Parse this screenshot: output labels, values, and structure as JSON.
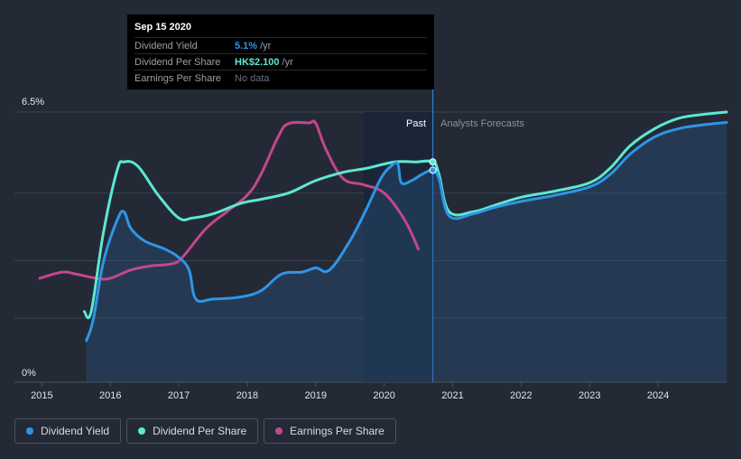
{
  "tooltip": {
    "date": "Sep 15 2020",
    "rows": [
      {
        "label": "Dividend Yield",
        "value": "5.1%",
        "unit": "/yr"
      },
      {
        "label": "Dividend Per Share",
        "value": "HK$2.100",
        "unit": "/yr"
      },
      {
        "label": "Earnings Per Share",
        "value": "No data",
        "unit": ""
      }
    ]
  },
  "labels": {
    "past": "Past",
    "forecast": "Analysts Forecasts"
  },
  "legend": [
    {
      "label": "Dividend Yield",
      "color": "#2f95e8"
    },
    {
      "label": "Dividend Per Share",
      "color": "#5de8d2"
    },
    {
      "label": "Earnings Per Share",
      "color": "#c4468c"
    }
  ],
  "chart_data": {
    "type": "line",
    "x_ticks": [
      "2015",
      "2016",
      "2017",
      "2018",
      "2019",
      "2020",
      "2021",
      "2022",
      "2023",
      "2024"
    ],
    "y_ticks": [
      "6.5%",
      "0%"
    ],
    "ylim": [
      0,
      6.5
    ],
    "xlim": [
      2014.6,
      2025.0
    ],
    "past_region": [
      2019.7,
      2020.71
    ],
    "forecast_start": 2020.71,
    "grid": true,
    "series": [
      {
        "name": "Dividend Yield",
        "color": "#2f95e8",
        "area": true,
        "points": [
          [
            2015.65,
            1.0
          ],
          [
            2015.75,
            1.5
          ],
          [
            2015.9,
            2.9
          ],
          [
            2016.1,
            3.9
          ],
          [
            2016.2,
            4.1
          ],
          [
            2016.3,
            3.7
          ],
          [
            2016.5,
            3.4
          ],
          [
            2016.8,
            3.2
          ],
          [
            2017.0,
            3.0
          ],
          [
            2017.15,
            2.7
          ],
          [
            2017.25,
            2.0
          ],
          [
            2017.5,
            2.0
          ],
          [
            2017.9,
            2.05
          ],
          [
            2018.2,
            2.2
          ],
          [
            2018.5,
            2.6
          ],
          [
            2018.8,
            2.65
          ],
          [
            2019.0,
            2.75
          ],
          [
            2019.2,
            2.7
          ],
          [
            2019.5,
            3.4
          ],
          [
            2019.75,
            4.2
          ],
          [
            2019.95,
            4.9
          ],
          [
            2020.1,
            5.2
          ],
          [
            2020.2,
            5.25
          ],
          [
            2020.25,
            4.8
          ],
          [
            2020.4,
            4.85
          ],
          [
            2020.55,
            5.0
          ],
          [
            2020.71,
            5.1
          ],
          [
            2020.8,
            4.9
          ],
          [
            2020.95,
            4.0
          ],
          [
            2021.3,
            4.05
          ],
          [
            2021.6,
            4.2
          ],
          [
            2022.0,
            4.35
          ],
          [
            2022.5,
            4.5
          ],
          [
            2023.0,
            4.7
          ],
          [
            2023.3,
            5.0
          ],
          [
            2023.6,
            5.5
          ],
          [
            2023.95,
            5.9
          ],
          [
            2024.3,
            6.1
          ],
          [
            2024.7,
            6.2
          ],
          [
            2025.0,
            6.25
          ]
        ]
      },
      {
        "name": "Dividend Per Share",
        "color": "#5de8d2",
        "area": false,
        "points": [
          [
            2015.62,
            1.7
          ],
          [
            2015.72,
            1.7
          ],
          [
            2015.9,
            3.6
          ],
          [
            2016.1,
            5.1
          ],
          [
            2016.2,
            5.3
          ],
          [
            2016.4,
            5.2
          ],
          [
            2016.7,
            4.5
          ],
          [
            2017.0,
            3.95
          ],
          [
            2017.2,
            3.95
          ],
          [
            2017.5,
            4.05
          ],
          [
            2017.9,
            4.3
          ],
          [
            2018.2,
            4.4
          ],
          [
            2018.6,
            4.55
          ],
          [
            2019.0,
            4.85
          ],
          [
            2019.4,
            5.05
          ],
          [
            2019.75,
            5.15
          ],
          [
            2020.15,
            5.3
          ],
          [
            2020.45,
            5.3
          ],
          [
            2020.71,
            5.3
          ],
          [
            2020.8,
            5.0
          ],
          [
            2020.95,
            4.1
          ],
          [
            2021.3,
            4.1
          ],
          [
            2021.6,
            4.25
          ],
          [
            2022.0,
            4.45
          ],
          [
            2022.5,
            4.6
          ],
          [
            2023.0,
            4.8
          ],
          [
            2023.3,
            5.15
          ],
          [
            2023.6,
            5.7
          ],
          [
            2023.95,
            6.1
          ],
          [
            2024.3,
            6.35
          ],
          [
            2024.7,
            6.45
          ],
          [
            2025.0,
            6.5
          ]
        ]
      },
      {
        "name": "Earnings Per Share",
        "color": "#c4468c",
        "area": false,
        "points": [
          [
            2014.97,
            2.5
          ],
          [
            2015.3,
            2.65
          ],
          [
            2015.5,
            2.6
          ],
          [
            2015.8,
            2.5
          ],
          [
            2016.0,
            2.5
          ],
          [
            2016.3,
            2.7
          ],
          [
            2016.6,
            2.8
          ],
          [
            2016.9,
            2.85
          ],
          [
            2017.05,
            3.0
          ],
          [
            2017.4,
            3.7
          ],
          [
            2017.7,
            4.1
          ],
          [
            2018.0,
            4.5
          ],
          [
            2018.2,
            5.0
          ],
          [
            2018.45,
            5.9
          ],
          [
            2018.6,
            6.22
          ],
          [
            2018.9,
            6.24
          ],
          [
            2019.0,
            6.23
          ],
          [
            2019.15,
            5.6
          ],
          [
            2019.4,
            4.9
          ],
          [
            2019.7,
            4.75
          ],
          [
            2020.0,
            4.55
          ],
          [
            2020.3,
            3.9
          ],
          [
            2020.5,
            3.2
          ]
        ]
      }
    ],
    "markers": [
      {
        "series": "Dividend Per Share",
        "x": 2020.71,
        "y": 5.3
      },
      {
        "series": "Dividend Yield",
        "x": 2020.71,
        "y": 5.1
      }
    ]
  }
}
